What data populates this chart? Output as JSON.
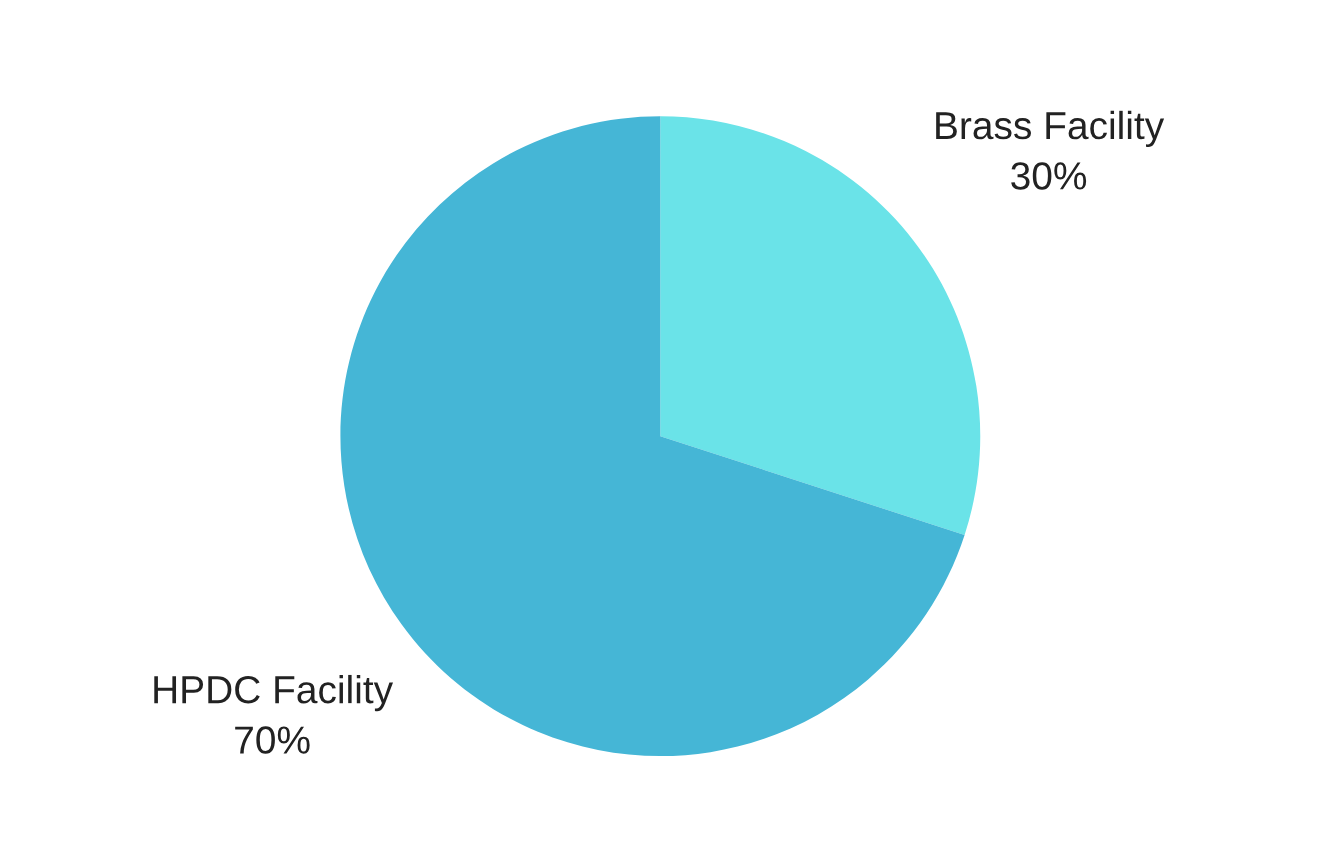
{
  "chart_data": {
    "type": "pie",
    "categories": [
      "Brass Facility",
      "HPDC Facility"
    ],
    "values": [
      30,
      70
    ],
    "value_labels": [
      "30%",
      "70%"
    ],
    "colors": [
      "#6ae3e8",
      "#45b6d6"
    ]
  }
}
